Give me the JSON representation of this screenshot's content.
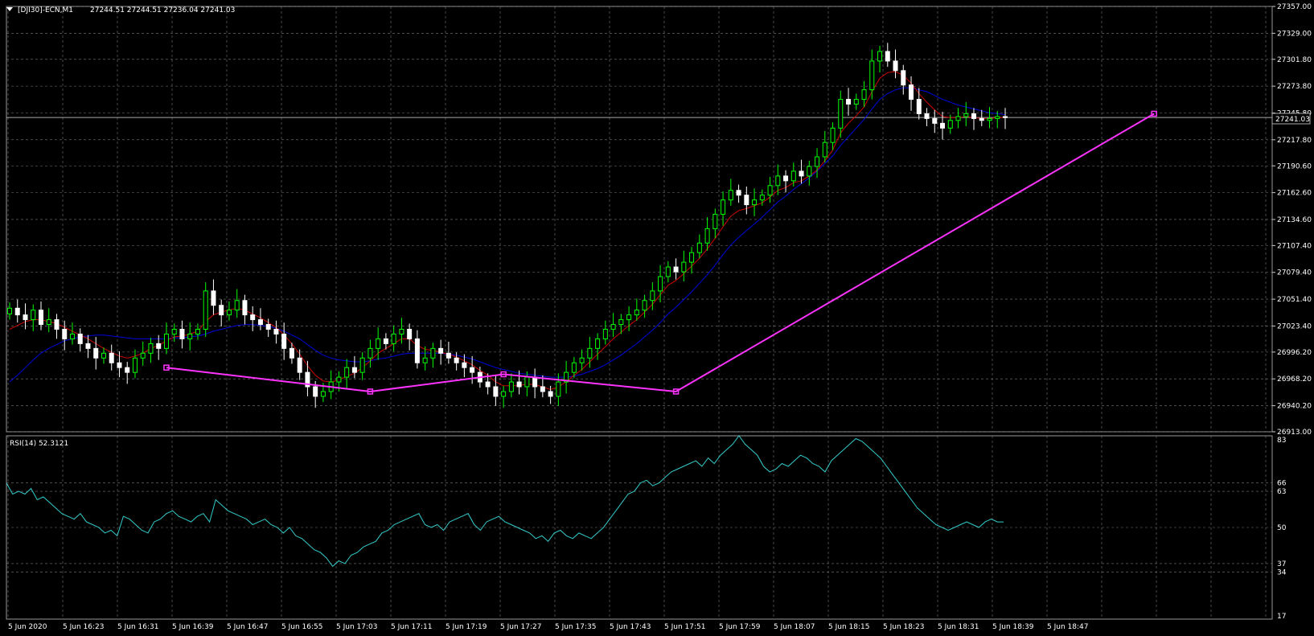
{
  "header": {
    "symbol": "[DJI30]-ECN,M1",
    "ohlc": "27244.51 27244.51 27236.04 27241.03"
  },
  "rsi_panel": {
    "label": "RSI(14) 52.3121"
  },
  "last_price_label": "27241.03",
  "colors": {
    "background": "#000000",
    "grid": "#7a7a7a",
    "bull_candle": "#00ff00",
    "bear_candle": "#ffffff",
    "ma_fast": "#cc0000",
    "ma_slow": "#0000dd",
    "trendline": "#ff33ff",
    "rsi_line": "#33cccc",
    "axis_text": "#ffffff"
  },
  "chart_data": [
    {
      "type": "candlestick",
      "title": "[DJI30]-ECN,M1",
      "price_axis_labels": [
        "27357.00",
        "27329.00",
        "27301.80",
        "27273.80",
        "27245.80",
        "27217.80",
        "27190.60",
        "27162.60",
        "27134.60",
        "27107.40",
        "27079.40",
        "27051.40",
        "27023.40",
        "26996.20",
        "26968.20",
        "26940.20",
        "26913.00"
      ],
      "ylim": [
        26913.0,
        27357.0
      ],
      "time_labels": [
        "5 Jun 2020",
        "5 Jun 16:23",
        "5 Jun 16:31",
        "5 Jun 16:39",
        "5 Jun 16:47",
        "5 Jun 16:55",
        "5 Jun 17:03",
        "5 Jun 17:11",
        "5 Jun 17:19",
        "5 Jun 17:27",
        "5 Jun 17:35",
        "5 Jun 17:43",
        "5 Jun 17:51",
        "5 Jun 17:59",
        "5 Jun 18:07",
        "5 Jun 18:15",
        "5 Jun 18:23",
        "5 Jun 18:31",
        "5 Jun 18:39",
        "5 Jun 18:47"
      ],
      "last_price": 27241.03,
      "series_close": [
        27042,
        27035,
        27030,
        27040,
        27025,
        27030,
        27020,
        27010,
        27015,
        27005,
        27000,
        26990,
        26995,
        26985,
        26980,
        26975,
        26990,
        26995,
        27005,
        27000,
        27015,
        27020,
        27010,
        27015,
        27020,
        27060,
        27045,
        27035,
        27040,
        27050,
        27035,
        27030,
        27025,
        27020,
        27015,
        27000,
        26990,
        26975,
        26960,
        26950,
        26955,
        26965,
        26970,
        26980,
        26975,
        26990,
        27000,
        27010,
        27005,
        27015,
        27020,
        27010,
        26985,
        26990,
        27000,
        26995,
        26990,
        26985,
        26980,
        26975,
        26965,
        26960,
        26950,
        26955,
        26965,
        26960,
        26970,
        26960,
        26955,
        26950,
        26965,
        26975,
        26985,
        26990,
        27000,
        27010,
        27020,
        27025,
        27030,
        27035,
        27040,
        27050,
        27060,
        27075,
        27085,
        27080,
        27090,
        27100,
        27110,
        27125,
        27140,
        27155,
        27165,
        27160,
        27150,
        27155,
        27160,
        27170,
        27180,
        27175,
        27185,
        27180,
        27190,
        27200,
        27215,
        27230,
        27260,
        27255,
        27260,
        27270,
        27300,
        27310,
        27300,
        27290,
        27275,
        27260,
        27245,
        27240,
        27235,
        27230,
        27238,
        27242,
        27245,
        27240,
        27238,
        27240,
        27242,
        27241
      ],
      "ma_fast": [
        27020,
        27024,
        27028,
        27030,
        27030,
        27028,
        27026,
        27022,
        27018,
        27014,
        27010,
        27005,
        27000,
        26996,
        26992,
        26990,
        26992,
        26995,
        27000,
        27003,
        27008,
        27012,
        27013,
        27015,
        27018,
        27028,
        27035,
        27038,
        27040,
        27042,
        27040,
        27036,
        27032,
        27027,
        27022,
        27014,
        27005,
        26994,
        26982,
        26972,
        26966,
        26965,
        26967,
        26971,
        26974,
        26980,
        26987,
        26995,
        27000,
        27005,
        27010,
        27010,
        27003,
        26999,
        26998,
        26996,
        26994,
        26991,
        26987,
        26983,
        26977,
        26972,
        26965,
        26961,
        26961,
        26961,
        26963,
        26962,
        26960,
        26957,
        26960,
        26965,
        26972,
        26978,
        26986,
        26994,
        27002,
        27010,
        27017,
        27024,
        27030,
        27038,
        27046,
        27056,
        27066,
        27071,
        27078,
        27086,
        27094,
        27104,
        27115,
        27127,
        27138,
        27144,
        27146,
        27149,
        27152,
        27158,
        27165,
        27168,
        27173,
        27175,
        27180,
        27186,
        27196,
        27207,
        27225,
        27235,
        27243,
        27252,
        27268,
        27282,
        27288,
        27289,
        27285,
        27277,
        27266,
        27257,
        27249,
        27242,
        27241,
        27241,
        27242,
        27241,
        27240,
        27240,
        27241,
        27241
      ],
      "ma_slow": [
        26965,
        26972,
        26980,
        26988,
        26995,
        27000,
        27004,
        27008,
        27010,
        27012,
        27013,
        27014,
        27014,
        27013,
        27012,
        27011,
        27010,
        27010,
        27010,
        27010,
        27010,
        27011,
        27011,
        27012,
        27013,
        27015,
        27018,
        27020,
        27022,
        27024,
        27025,
        27025,
        27024,
        27023,
        27021,
        27018,
        27014,
        27010,
        27004,
        26998,
        26993,
        26990,
        26988,
        26987,
        26986,
        26986,
        26987,
        26989,
        26990,
        26992,
        26994,
        26995,
        26995,
        26995,
        26995,
        26995,
        26994,
        26993,
        26991,
        26989,
        26986,
        26983,
        26980,
        26978,
        26976,
        26974,
        26973,
        26972,
        26971,
        26970,
        26970,
        26970,
        26971,
        26973,
        26976,
        26979,
        26983,
        26988,
        26993,
        26999,
        27005,
        27012,
        27019,
        27027,
        27036,
        27043,
        27051,
        27059,
        27068,
        27077,
        27087,
        27098,
        27108,
        27116,
        27123,
        27130,
        27137,
        27145,
        27153,
        27159,
        27166,
        27172,
        27178,
        27185,
        27193,
        27201,
        27212,
        27221,
        27230,
        27239,
        27250,
        27260,
        27266,
        27270,
        27272,
        27272,
        27270,
        27268,
        27264,
        27260,
        27257,
        27254,
        27252,
        27250,
        27248,
        27246,
        27245,
        27244
      ],
      "trendline_points": [
        {
          "x": 20,
          "y": 26980
        },
        {
          "x": 46,
          "y": 26955
        },
        {
          "x": 63,
          "y": 26973
        },
        {
          "x": 85,
          "y": 26955
        },
        {
          "x": 146,
          "y": 27245
        }
      ]
    },
    {
      "type": "line",
      "title": "RSI(14) 52.3121",
      "levels": [
        83,
        66,
        63,
        50,
        37,
        34,
        17
      ],
      "ylim": [
        17,
        83
      ],
      "series": [
        {
          "name": "RSI(14)",
          "values": [
            66,
            62,
            63,
            62,
            64,
            60,
            61,
            59,
            57,
            55,
            54,
            53,
            55,
            52,
            51,
            50,
            48,
            49,
            47,
            54,
            53,
            51,
            49,
            48,
            52,
            53,
            55,
            56,
            54,
            53,
            52,
            54,
            55,
            52,
            60,
            58,
            56,
            55,
            54,
            53,
            51,
            52,
            53,
            51,
            50,
            48,
            50,
            47,
            46,
            44,
            42,
            41,
            39,
            36,
            38,
            37,
            40,
            41,
            43,
            44,
            45,
            48,
            49,
            51,
            52,
            53,
            54,
            55,
            51,
            50,
            51,
            49,
            52,
            53,
            54,
            55,
            51,
            49,
            52,
            53,
            54,
            52,
            51,
            50,
            49,
            48,
            46,
            47,
            45,
            48,
            49,
            47,
            46,
            48,
            47,
            46,
            48,
            50,
            53,
            56,
            59,
            62,
            63,
            66,
            67,
            65,
            66,
            68,
            70,
            71,
            72,
            73,
            74,
            72,
            75,
            73,
            76,
            78,
            80,
            83,
            80,
            78,
            76,
            72,
            70,
            71,
            73,
            72,
            74,
            76,
            75,
            73,
            72,
            70,
            74,
            76,
            78,
            80,
            82,
            81,
            79,
            77,
            75,
            72,
            69,
            66,
            63,
            60,
            57,
            55,
            53,
            51,
            50,
            49,
            50,
            51,
            52,
            51,
            50,
            52,
            53,
            52,
            52
          ]
        }
      ]
    }
  ]
}
